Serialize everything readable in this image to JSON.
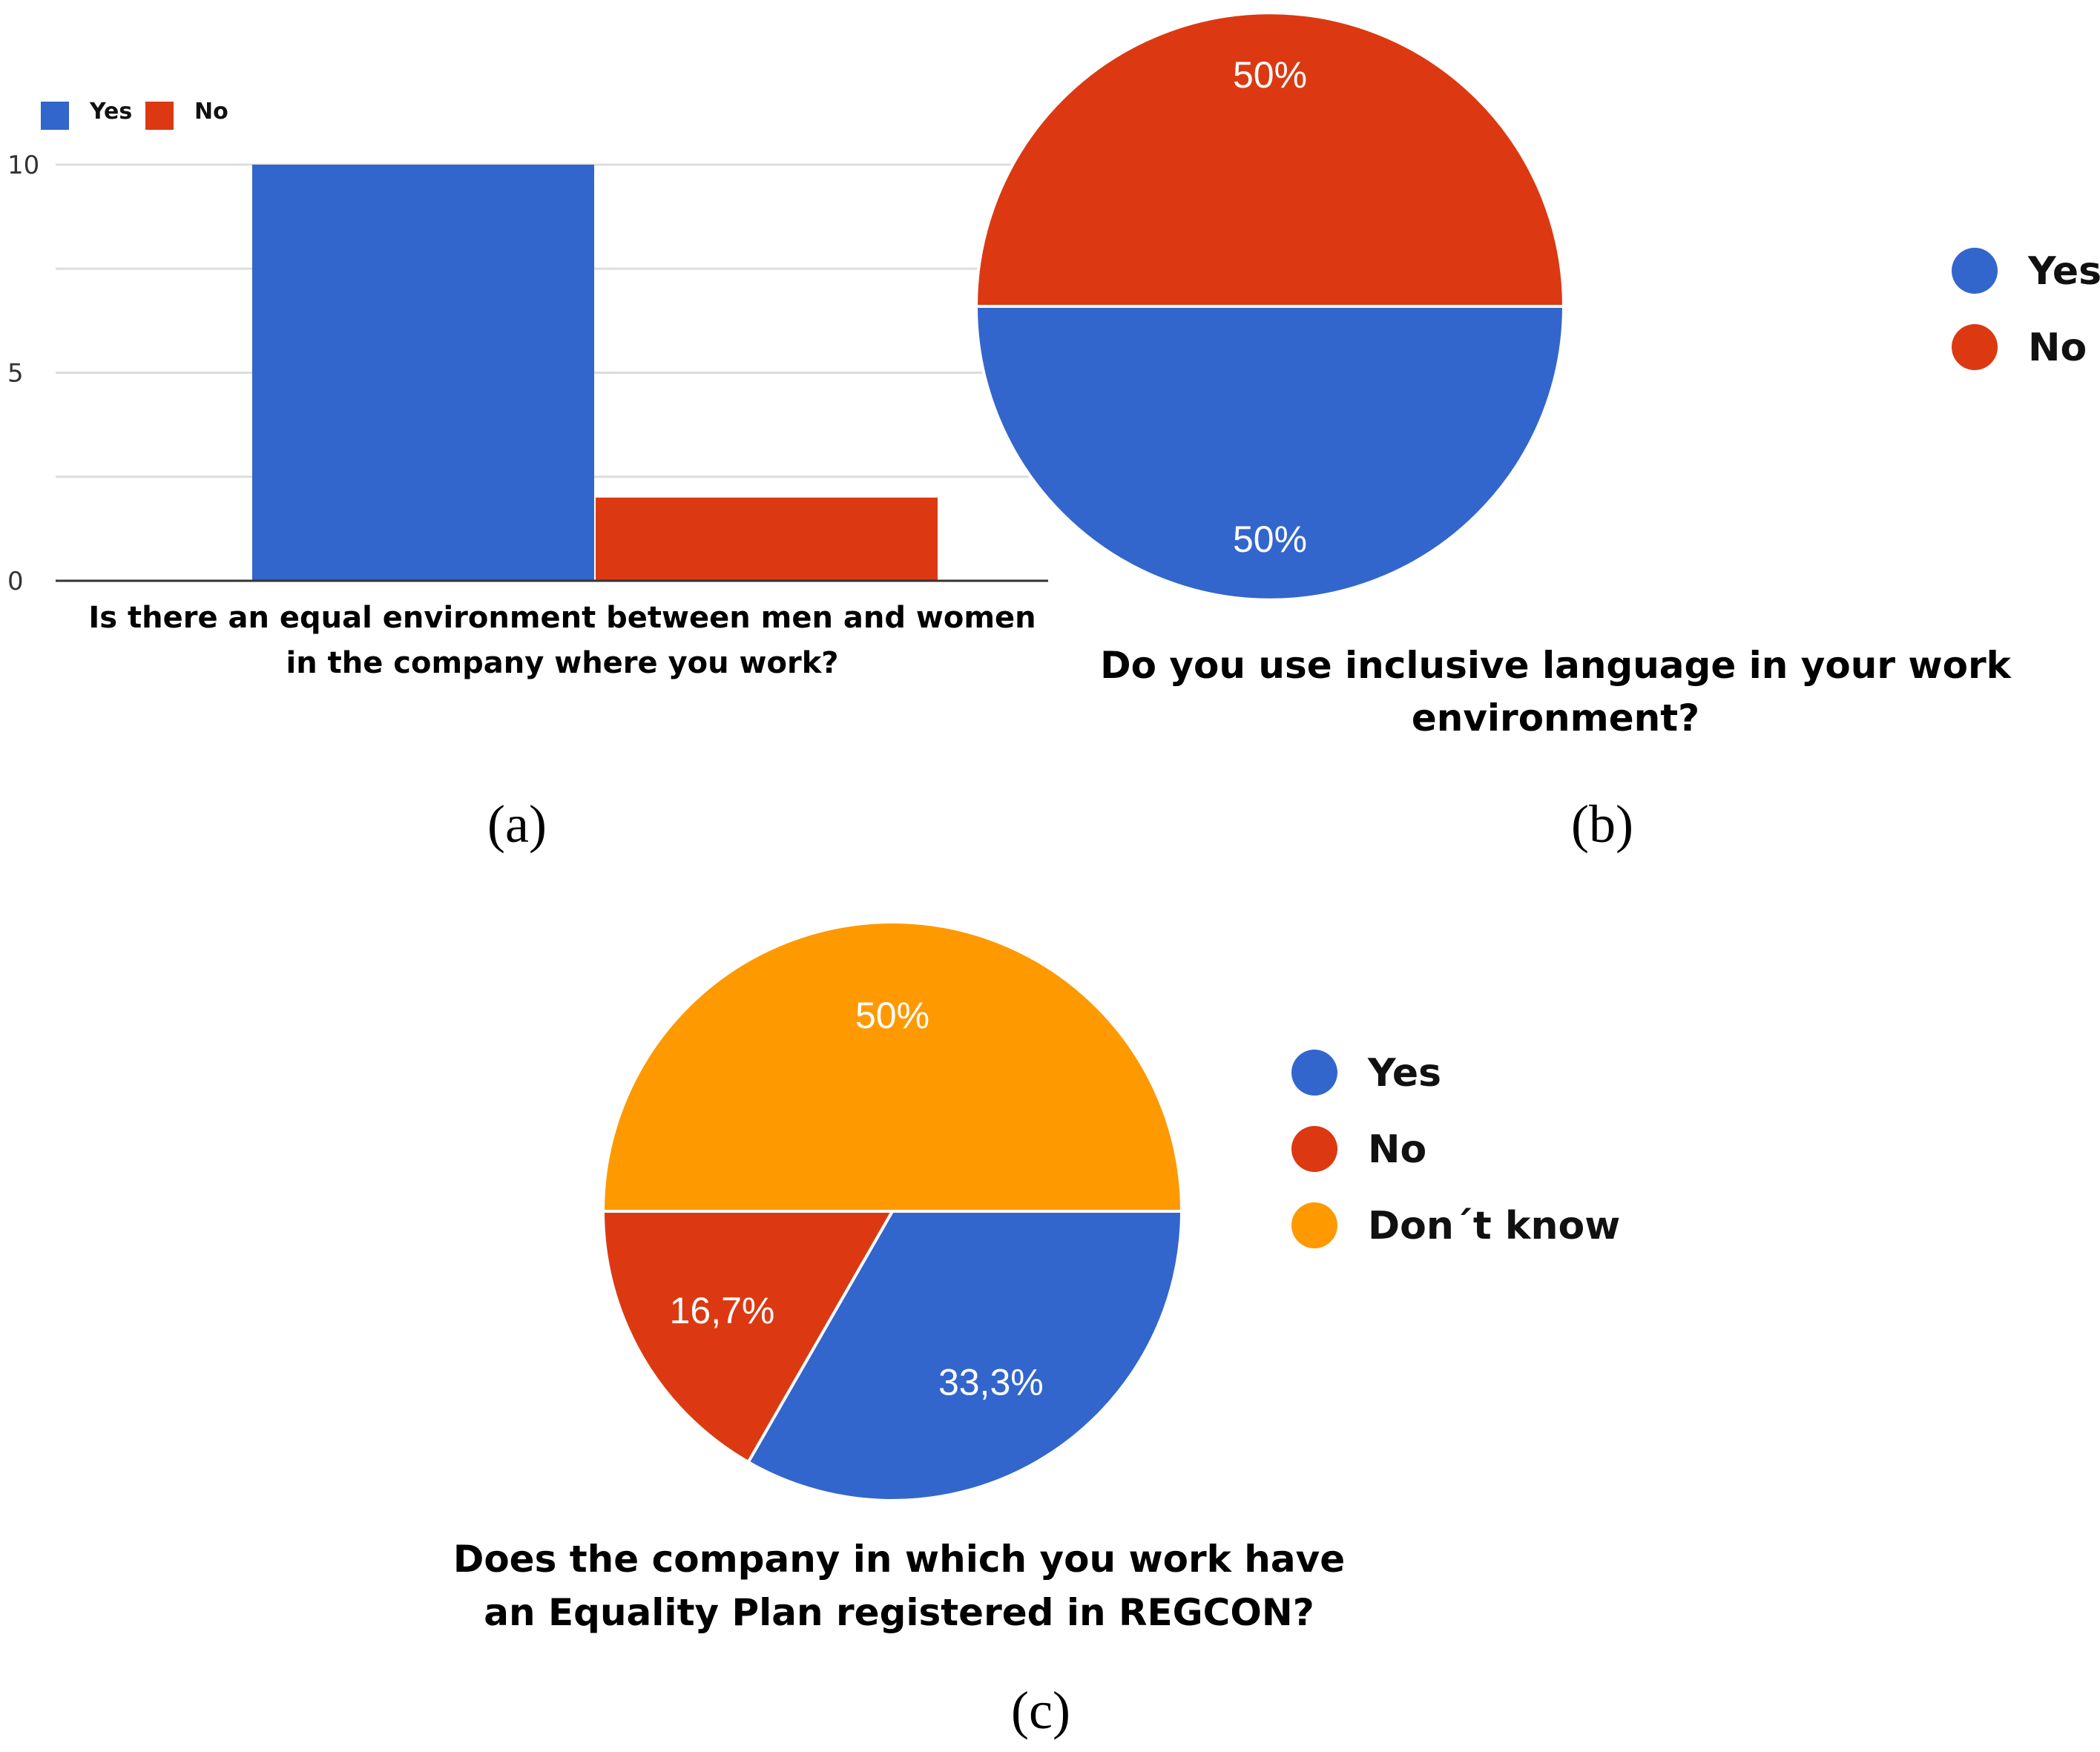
{
  "chart_data": [
    {
      "panel": "(a)",
      "type": "bar",
      "title": "Is there an equal environment between men and women in the company where you work?",
      "title_lines": [
        "Is there an equal environment between men and women",
        "in the company where you work?"
      ],
      "ytick_labels": [
        "0",
        "5",
        "10"
      ],
      "ylim": [
        0,
        10
      ],
      "grid": true,
      "legend_position": "top-left",
      "series": [
        {
          "name": "Yes",
          "value": 10,
          "color": "#3366cc"
        },
        {
          "name": "No",
          "value": 2,
          "color": "#dc3912"
        }
      ]
    },
    {
      "panel": "(b)",
      "type": "pie",
      "title": "Do you use inclusive language in your work environment?",
      "title_lines": [
        "Do you use inclusive language in your work",
        "environment?"
      ],
      "legend_position": "right",
      "slices": [
        {
          "name": "Yes",
          "value": 50,
          "label": "50%",
          "color": "#3366cc"
        },
        {
          "name": "No",
          "value": 50,
          "label": "50%",
          "color": "#dc3912"
        }
      ]
    },
    {
      "panel": "(c)",
      "type": "pie",
      "title": "Does the company in which you work have an Equality Plan registered in REGCON?",
      "title_lines": [
        "Does the company in which you work have",
        "an Equality Plan registered in REGCON?"
      ],
      "legend_position": "right",
      "slices": [
        {
          "name": "Yes",
          "value": 33.3,
          "label": "33,3%",
          "color": "#3366cc"
        },
        {
          "name": "No",
          "value": 16.7,
          "label": "16,7%",
          "color": "#dc3912"
        },
        {
          "name": "Don´t know",
          "value": 50,
          "label": "50%",
          "color": "#ff9900"
        }
      ]
    }
  ]
}
